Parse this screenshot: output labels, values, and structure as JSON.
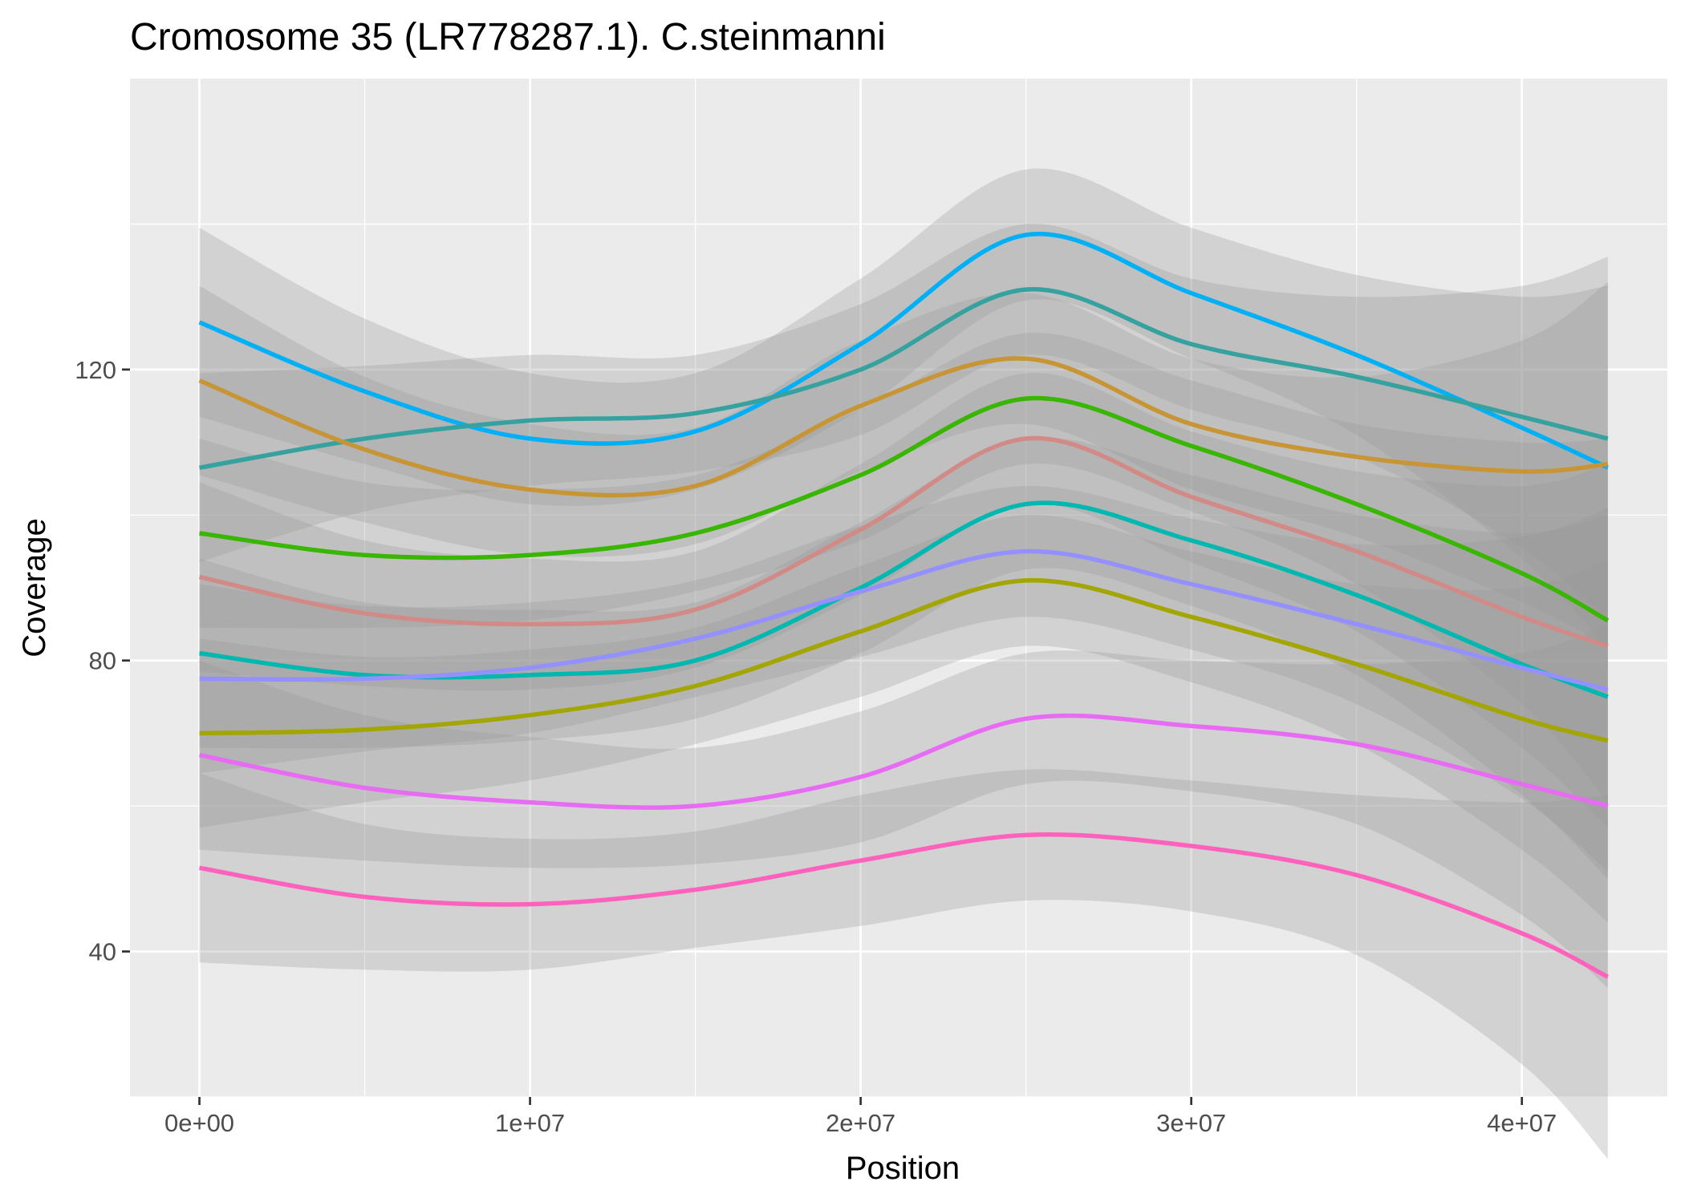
{
  "chart_data": {
    "type": "line",
    "title": "Cromosome 35 (LR778287.1). C.steinmanni",
    "xlabel": "Position",
    "ylabel": "Coverage",
    "xlim": [
      -2100000,
      44400000
    ],
    "ylim": [
      20,
      160
    ],
    "x_ticks": [
      0,
      10000000,
      20000000,
      30000000,
      40000000
    ],
    "x_tick_labels": [
      "0e+00",
      "1e+07",
      "2e+07",
      "3e+07",
      "4e+07"
    ],
    "y_ticks": [
      40,
      80,
      120
    ],
    "y_tick_labels": [
      "40",
      "80",
      "120"
    ],
    "grid": true,
    "legend": "none",
    "x": [
      0,
      5000000,
      10000000,
      15000000,
      20000000,
      25000000,
      30000000,
      35000000,
      40000000,
      42600000
    ],
    "series": [
      {
        "color": "#00b0f6",
        "values": [
          126.5,
          117,
          110.5,
          111.5,
          123.5,
          138.5,
          130.5,
          122,
          112,
          106.5
        ],
        "band": [
          13,
          10,
          9,
          8,
          9,
          9,
          9,
          11,
          18,
          25
        ]
      },
      {
        "color": "#35a2a0",
        "values": [
          106.5,
          110.5,
          113,
          114,
          120,
          131,
          123.5,
          119,
          113.5,
          110.5
        ],
        "band": [
          13,
          10,
          9,
          8,
          9,
          9,
          9,
          11,
          18,
          25
        ]
      },
      {
        "color": "#c79536",
        "values": [
          118.5,
          109,
          103.5,
          104,
          115,
          121.5,
          112.5,
          108,
          106,
          107
        ],
        "band": [
          13,
          10,
          9,
          8,
          9,
          9,
          9,
          11,
          18,
          25
        ]
      },
      {
        "color": "#39b600",
        "values": [
          97.5,
          94.5,
          94.5,
          97.5,
          105.5,
          116,
          109.5,
          101.5,
          92,
          85.5
        ],
        "band": [
          13,
          10,
          9,
          8,
          9,
          9,
          9,
          11,
          18,
          25
        ]
      },
      {
        "color": "#d28a87",
        "values": [
          91.5,
          86.5,
          85,
          87,
          98,
          110.5,
          102.5,
          95,
          86,
          82
        ],
        "band": [
          13,
          10,
          9,
          8,
          9,
          9,
          9,
          11,
          18,
          25
        ]
      },
      {
        "color": "#00b8b0",
        "values": [
          81,
          78,
          78,
          80,
          90,
          101.5,
          96.5,
          89,
          79.5,
          75
        ],
        "band": [
          13,
          10,
          9,
          8,
          9,
          9,
          9,
          11,
          18,
          25
        ]
      },
      {
        "color": "#9590ff",
        "values": [
          77.5,
          77.5,
          79,
          83,
          89.5,
          95,
          90.5,
          85,
          79,
          76
        ],
        "band": [
          13,
          10,
          9,
          8,
          9,
          9,
          9,
          11,
          18,
          25
        ]
      },
      {
        "color": "#a3a500",
        "values": [
          70,
          70.5,
          72.5,
          76.5,
          84,
          91,
          86,
          79.5,
          72,
          69
        ],
        "band": [
          13,
          10,
          9,
          8,
          9,
          9,
          9,
          11,
          18,
          25
        ]
      },
      {
        "color": "#e76bf3",
        "values": [
          67,
          62.5,
          60.5,
          60,
          64,
          72,
          71,
          68.5,
          63,
          60
        ],
        "band": [
          13,
          10,
          9,
          8,
          9,
          9,
          9,
          11,
          18,
          25
        ]
      },
      {
        "color": "#ff62bc",
        "values": [
          51.5,
          47.5,
          46.5,
          48.5,
          52.5,
          56,
          54.5,
          50.5,
          42.5,
          36.5
        ],
        "band": [
          13,
          10,
          9,
          8,
          9,
          9,
          9,
          11,
          18,
          25
        ]
      }
    ],
    "colors": {
      "panel": "#ebebeb",
      "grid_major": "#ffffff",
      "band": "#999999"
    }
  }
}
